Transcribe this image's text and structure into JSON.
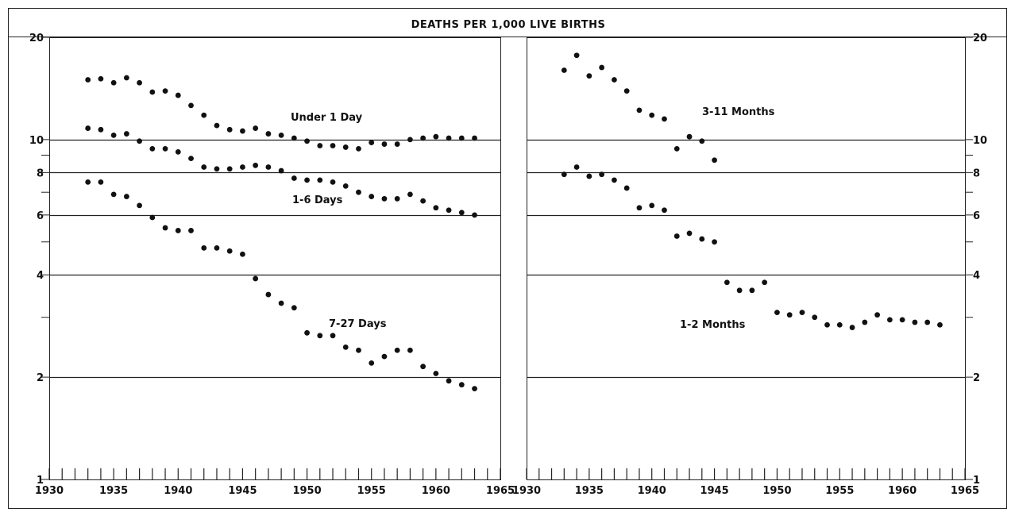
{
  "chart_data": {
    "type": "scatter",
    "title": "DEATHS PER 1,000 LIVE BIRTHS",
    "scale": "log",
    "grid": true,
    "xlim": [
      1930,
      1965
    ],
    "ylim": [
      1,
      20
    ],
    "x_tick_labels": [
      "1930",
      "1935",
      "1940",
      "1945",
      "1950",
      "1955",
      "1960",
      "1965"
    ],
    "y_tick_labels": [
      "1",
      "2",
      "4",
      "6",
      "8",
      "10",
      "20"
    ],
    "panels": [
      {
        "series": [
          {
            "name": "Under 1 Day",
            "x": [
              1933,
              1934,
              1935,
              1936,
              1937,
              1938,
              1939,
              1940,
              1941,
              1942,
              1943,
              1944,
              1945,
              1946,
              1947,
              1948,
              1949,
              1950,
              1951,
              1952,
              1953,
              1954,
              1955,
              1956,
              1957,
              1958,
              1959,
              1960,
              1961,
              1962,
              1963
            ],
            "y": [
              15.0,
              15.1,
              14.7,
              15.2,
              14.7,
              13.8,
              13.9,
              13.5,
              12.6,
              11.8,
              11.0,
              10.7,
              10.6,
              10.8,
              10.4,
              10.3,
              10.1,
              9.9,
              9.6,
              9.6,
              9.5,
              9.4,
              9.8,
              9.7,
              9.7,
              10.0,
              10.1,
              10.2,
              10.1,
              10.1,
              10.1
            ]
          },
          {
            "name": "1-6 Days",
            "x": [
              1933,
              1934,
              1935,
              1936,
              1937,
              1938,
              1939,
              1940,
              1941,
              1942,
              1943,
              1944,
              1945,
              1946,
              1947,
              1948,
              1949,
              1950,
              1951,
              1952,
              1953,
              1954,
              1955,
              1956,
              1957,
              1958,
              1959,
              1960,
              1961,
              1962,
              1963
            ],
            "y": [
              10.8,
              10.7,
              10.3,
              10.4,
              9.9,
              9.4,
              9.4,
              9.2,
              8.8,
              8.3,
              8.2,
              8.2,
              8.3,
              8.4,
              8.3,
              8.1,
              7.7,
              7.6,
              7.6,
              7.5,
              7.3,
              7.0,
              6.8,
              6.7,
              6.7,
              6.9,
              6.6,
              6.3,
              6.2,
              6.1,
              6.0
            ]
          },
          {
            "name": "7-27 Days",
            "x": [
              1933,
              1934,
              1935,
              1936,
              1937,
              1938,
              1939,
              1940,
              1941,
              1942,
              1943,
              1944,
              1945,
              1946,
              1947,
              1948,
              1949,
              1950,
              1951,
              1952,
              1953,
              1954,
              1955,
              1956,
              1957,
              1958,
              1959,
              1960,
              1961,
              1962,
              1963
            ],
            "y": [
              7.5,
              7.5,
              6.9,
              6.8,
              6.4,
              5.9,
              5.5,
              5.4,
              5.4,
              4.8,
              4.8,
              4.7,
              4.6,
              3.9,
              3.5,
              3.3,
              3.2,
              2.7,
              2.65,
              2.65,
              2.45,
              2.4,
              2.2,
              2.3,
              2.4,
              2.4,
              2.15,
              2.05,
              1.95,
              1.9,
              1.85
            ]
          }
        ]
      },
      {
        "series": [
          {
            "name": "3-11 Months",
            "x": [
              1933,
              1934,
              1935,
              1936,
              1937,
              1938,
              1939,
              1940,
              1941,
              1942,
              1943,
              1944,
              1945
            ],
            "y": [
              16.0,
              17.7,
              15.4,
              16.3,
              15.0,
              13.9,
              12.2,
              11.8,
              11.5,
              9.4,
              10.2,
              9.9,
              8.7
            ]
          },
          {
            "name": "1-2 Months",
            "x": [
              1933,
              1934,
              1935,
              1936,
              1937,
              1938,
              1939,
              1940,
              1941,
              1942,
              1943,
              1944,
              1945,
              1946,
              1947,
              1948,
              1949,
              1950,
              1951,
              1952,
              1953,
              1954,
              1955,
              1956,
              1957,
              1958,
              1959,
              1960,
              1961,
              1962,
              1963
            ],
            "y": [
              7.9,
              8.3,
              7.8,
              7.9,
              7.6,
              7.2,
              6.3,
              6.4,
              6.2,
              5.2,
              5.3,
              5.1,
              5.0,
              3.8,
              3.6,
              3.6,
              3.8,
              3.1,
              3.05,
              3.1,
              3.0,
              2.85,
              2.85,
              2.8,
              2.9,
              3.05,
              2.95,
              2.95,
              2.9,
              2.9,
              2.85
            ]
          }
        ]
      }
    ]
  }
}
